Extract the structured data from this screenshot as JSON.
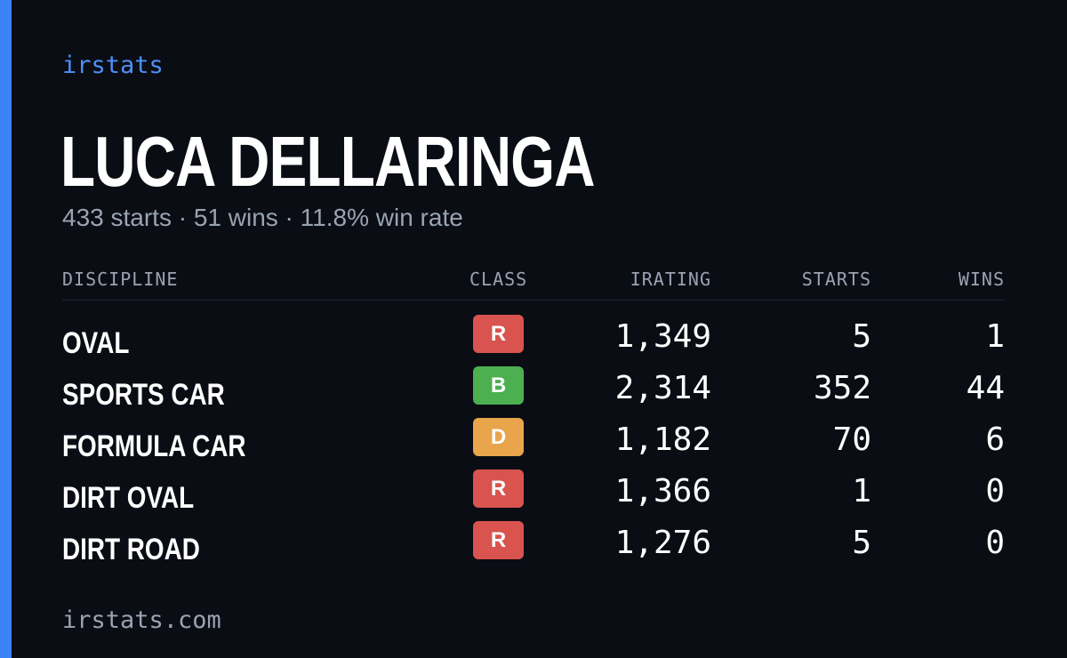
{
  "brand": "irstats",
  "player": {
    "name": "LUCA DELLARINGA",
    "summary": "433 starts · 51 wins · 11.8% win rate"
  },
  "table": {
    "headers": {
      "discipline": "DISCIPLINE",
      "class": "CLASS",
      "irating": "IRATING",
      "starts": "STARTS",
      "wins": "WINS"
    },
    "rows": [
      {
        "discipline": "OVAL",
        "class": "R",
        "class_color": "#d9534f",
        "irating": "1,349",
        "starts": "5",
        "wins": "1"
      },
      {
        "discipline": "SPORTS CAR",
        "class": "B",
        "class_color": "#4caf50",
        "irating": "2,314",
        "starts": "352",
        "wins": "44"
      },
      {
        "discipline": "FORMULA CAR",
        "class": "D",
        "class_color": "#e8a54b",
        "irating": "1,182",
        "starts": "70",
        "wins": "6"
      },
      {
        "discipline": "DIRT OVAL",
        "class": "R",
        "class_color": "#d9534f",
        "irating": "1,366",
        "starts": "1",
        "wins": "0"
      },
      {
        "discipline": "DIRT ROAD",
        "class": "R",
        "class_color": "#d9534f",
        "irating": "1,276",
        "starts": "5",
        "wins": "0"
      }
    ]
  },
  "footer": "irstats.com",
  "colors": {
    "accent": "#3b82f6",
    "background": "#0a0d14",
    "muted_text": "#9aa3b2"
  }
}
